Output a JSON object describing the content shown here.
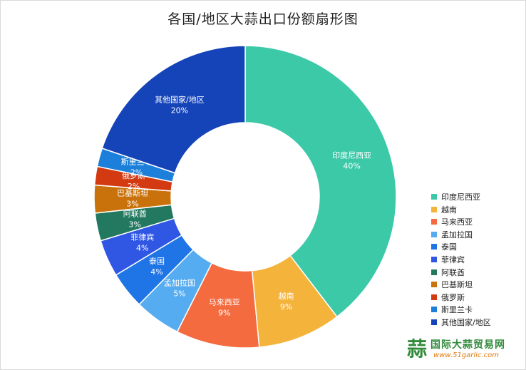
{
  "chart_data": {
    "type": "pie",
    "variant": "donut",
    "title": "各国/地区大蒜出口份额扇形图",
    "unit": "%",
    "legend_position": "right-bottom",
    "slices": [
      {
        "label": "印度尼西亚",
        "value": 40,
        "value_label": "40%",
        "color": "#3cc9a8"
      },
      {
        "label": "越南",
        "value": 9,
        "value_label": "9%",
        "color": "#f4b33b"
      },
      {
        "label": "马来西亚",
        "value": 9,
        "value_label": "9%",
        "color": "#f36b3f"
      },
      {
        "label": "孟加拉国",
        "value": 5,
        "value_label": "5%",
        "color": "#55acf0"
      },
      {
        "label": "泰国",
        "value": 4,
        "value_label": "4%",
        "color": "#1f74e6"
      },
      {
        "label": "菲律宾",
        "value": 4,
        "value_label": "4%",
        "color": "#2f57e4"
      },
      {
        "label": "阿联酋",
        "value": 3,
        "value_label": "3%",
        "color": "#237960"
      },
      {
        "label": "巴基斯坦",
        "value": 3,
        "value_label": "3%",
        "color": "#c9720c"
      },
      {
        "label": "俄罗斯",
        "value": 2,
        "value_label": "2%",
        "color": "#d33a12"
      },
      {
        "label": "斯里兰卡",
        "value": 2,
        "value_label": "2%",
        "color": "#1c7fd9"
      },
      {
        "label": "其他国家/地区",
        "value": 20,
        "value_label": "20%",
        "color": "#1543b8"
      }
    ]
  },
  "watermark": {
    "icon_glyph": "蒜",
    "name": "国际大蒜贸易网",
    "url": "www.51garlic.com"
  }
}
